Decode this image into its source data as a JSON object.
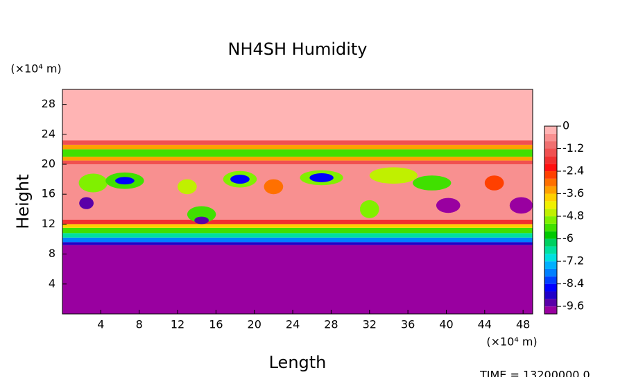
{
  "chart_data": {
    "type": "contour",
    "title": "NH4SH Humidity",
    "xlabel": "Length",
    "ylabel": "Height",
    "x_unit": "(×10⁴ m)",
    "y_unit": "(×10⁴ m)",
    "time_label": "TIME = 13200000.0",
    "xlim": [
      0,
      49
    ],
    "xticks": [
      4,
      8,
      12,
      16,
      20,
      24,
      28,
      32,
      36,
      40,
      44,
      48
    ],
    "ylim": [
      0,
      30
    ],
    "yticks": [
      4,
      8,
      12,
      16,
      20,
      24,
      28
    ],
    "clim": [
      -10,
      0
    ],
    "cticks": [
      0,
      -1.2,
      -2.4,
      -3.6,
      -4.8,
      -6,
      -7.2,
      -8.4,
      -9.6
    ],
    "colors": [
      "#9900a0",
      "#5a00a8",
      "#2000c8",
      "#0000ff",
      "#0040ff",
      "#0080ff",
      "#00b0ff",
      "#00e0e0",
      "#00e0a0",
      "#00d060",
      "#00c800",
      "#40e000",
      "#80f000",
      "#c0f000",
      "#f0f000",
      "#ffd000",
      "#ffa000",
      "#ff7000",
      "#ff4000",
      "#ff1010",
      "#f03030",
      "#f05050",
      "#f07070",
      "#f89090",
      "#ffb4b4"
    ],
    "layers": [
      {
        "y0": 0,
        "y1": 9.2,
        "value": -10
      },
      {
        "y0": 9.2,
        "y1": 9.6,
        "value": -8.8
      },
      {
        "y0": 9.6,
        "y1": 10.2,
        "value": -7.8
      },
      {
        "y0": 10.2,
        "y1": 10.8,
        "value": -6.8
      },
      {
        "y0": 10.8,
        "y1": 11.5,
        "value": -5.4
      },
      {
        "y0": 11.5,
        "y1": 12,
        "value": -3.8
      },
      {
        "y0": 12,
        "y1": 12.6,
        "value": -2
      },
      {
        "y0": 12.6,
        "y1": 20,
        "value": -0.6
      },
      {
        "y0": 20,
        "y1": 20.5,
        "value": -1.6
      },
      {
        "y0": 20.5,
        "y1": 21,
        "value": -3.4
      },
      {
        "y0": 21,
        "y1": 22,
        "value": -5.2
      },
      {
        "y0": 22,
        "y1": 22.6,
        "value": -3.4
      },
      {
        "y0": 22.6,
        "y1": 23.2,
        "value": -1.6
      },
      {
        "y0": 23.2,
        "y1": 30,
        "value": -0.1
      }
    ],
    "blobs": [
      {
        "x": 3.2,
        "y": 17.5,
        "w": 3,
        "h": 2.5,
        "value": -5
      },
      {
        "x": 2.5,
        "y": 14.8,
        "w": 1.5,
        "h": 1.6,
        "value": -9.6
      },
      {
        "x": 6.5,
        "y": 17.8,
        "w": 4,
        "h": 2.2,
        "value": -5.2
      },
      {
        "x": 6.5,
        "y": 17.8,
        "w": 2,
        "h": 1,
        "value": -8.6
      },
      {
        "x": 14.5,
        "y": 13.3,
        "w": 3,
        "h": 2.2,
        "value": -5.4
      },
      {
        "x": 14.5,
        "y": 12.5,
        "w": 1.5,
        "h": 1,
        "value": -9.4
      },
      {
        "x": 13,
        "y": 17,
        "w": 2,
        "h": 2,
        "value": -4.6
      },
      {
        "x": 18.5,
        "y": 18,
        "w": 3.5,
        "h": 2.2,
        "value": -5
      },
      {
        "x": 18.5,
        "y": 18,
        "w": 2,
        "h": 1.2,
        "value": -8.4
      },
      {
        "x": 22,
        "y": 17,
        "w": 2,
        "h": 2,
        "value": -3
      },
      {
        "x": 27,
        "y": 18.2,
        "w": 4.5,
        "h": 2,
        "value": -5
      },
      {
        "x": 27,
        "y": 18.2,
        "w": 2.5,
        "h": 1.2,
        "value": -8.6
      },
      {
        "x": 32,
        "y": 14,
        "w": 2,
        "h": 2.4,
        "value": -5
      },
      {
        "x": 34.5,
        "y": 18.5,
        "w": 5,
        "h": 2.2,
        "value": -4.8
      },
      {
        "x": 38.5,
        "y": 17.5,
        "w": 4,
        "h": 2,
        "value": -5.6
      },
      {
        "x": 40.2,
        "y": 14.5,
        "w": 2.5,
        "h": 2,
        "value": -10
      },
      {
        "x": 47.8,
        "y": 14.5,
        "w": 2.4,
        "h": 2.2,
        "value": -10
      },
      {
        "x": 45,
        "y": 17.5,
        "w": 2,
        "h": 2,
        "value": -2.8
      }
    ]
  }
}
